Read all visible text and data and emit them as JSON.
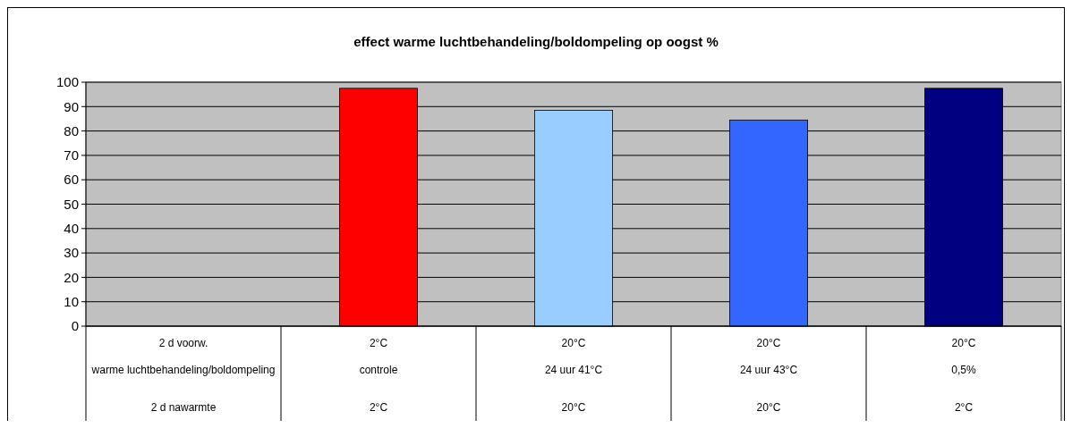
{
  "chart_data": {
    "type": "bar",
    "title": "effect warme luchtbehandeling/boldompeling op oogst %",
    "categories": [
      "2 d voorw.\nwarme luchtbehandeling/boldompeling\n2 d nawarmte",
      "2°C\ncontrole\n2°C",
      "20°C\n24 uur 41°C\n20°C",
      "20°C\n24 uur 43°C\n20°C",
      "20°C\n0,5%\n2°C"
    ],
    "values": [
      null,
      97.5,
      88.5,
      84.5,
      97.5
    ],
    "colors": [
      null,
      "#ff0000",
      "#99ccff",
      "#3366ff",
      "#000080"
    ],
    "ylim": [
      0,
      100
    ],
    "yticks": [
      0,
      10,
      20,
      30,
      40,
      50,
      60,
      70,
      80,
      90,
      100
    ],
    "grid": "y"
  }
}
